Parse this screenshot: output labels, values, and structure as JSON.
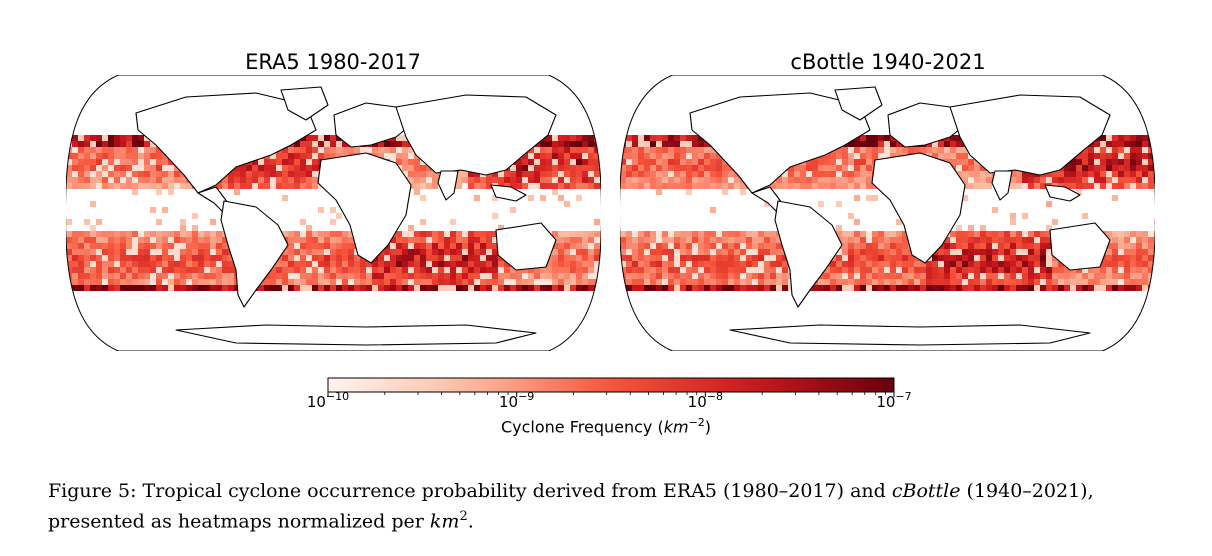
{
  "chart_data": [
    {
      "type": "heatmap",
      "title": "ERA5 1980-2017",
      "projection": "Robinson (global)",
      "colormap": "Reds",
      "bands": [
        {
          "region": "North Pacific (west)",
          "level": "high"
        },
        {
          "region": "North Atlantic",
          "level": "high"
        },
        {
          "region": "North Indian Ocean",
          "level": "medium"
        },
        {
          "region": "South Indian Ocean",
          "level": "high"
        },
        {
          "region": "South Pacific",
          "level": "medium"
        }
      ]
    },
    {
      "type": "heatmap",
      "title": "cBottle 1940-2021",
      "projection": "Robinson (global)",
      "colormap": "Reds",
      "bands": [
        {
          "region": "North Pacific (west)",
          "level": "high"
        },
        {
          "region": "North Atlantic",
          "level": "medium"
        },
        {
          "region": "North Indian Ocean",
          "level": "medium"
        },
        {
          "region": "South Indian Ocean",
          "level": "high"
        },
        {
          "region": "South Pacific",
          "level": "medium"
        }
      ]
    }
  ],
  "colorbar": {
    "scale": "log",
    "range": [
      1e-10,
      1e-07
    ],
    "ticks": [
      {
        "base": "10",
        "exp": "−10"
      },
      {
        "base": "10",
        "exp": "−9"
      },
      {
        "base": "10",
        "exp": "−8"
      },
      {
        "base": "10",
        "exp": "−7"
      }
    ],
    "label_main": "Cyclone Frequency (",
    "label_unit": "km",
    "label_exp": "−2",
    "label_close": ")"
  },
  "caption": {
    "prefix": "Figure 5: Tropical cyclone occurrence probability derived from ERA5 (1980–2017) and ",
    "model": "cBottle",
    "middle": " (1940–2021), presented as heatmaps normalized per ",
    "unit": "km",
    "exp": "2",
    "suffix": "."
  },
  "colors": {
    "low": "#fff5f0",
    "mid": "#f6553c",
    "high": "#67000d"
  }
}
